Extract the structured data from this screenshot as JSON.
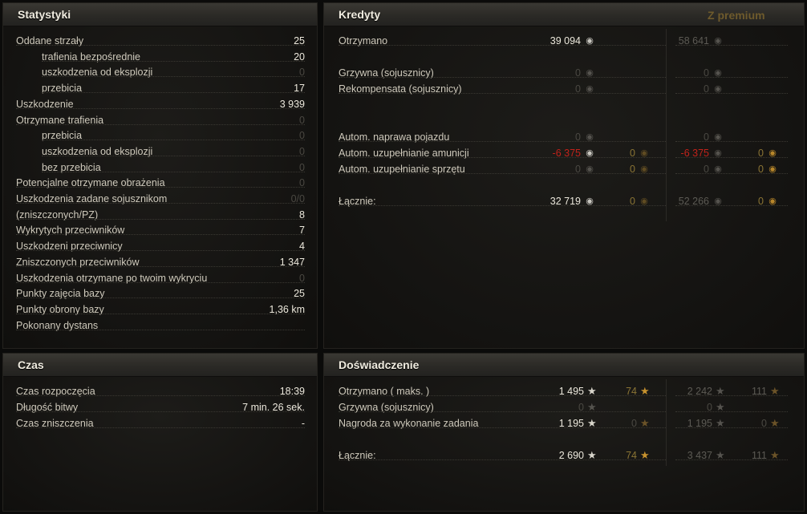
{
  "stats": {
    "title": "Statystyki",
    "rows": [
      {
        "label": "Oddane strzały",
        "value": "25",
        "indent": false,
        "dim": false
      },
      {
        "label": "trafienia bezpośrednie",
        "value": "20",
        "indent": true,
        "dim": false
      },
      {
        "label": "uszkodzenia od eksplozji",
        "value": "0",
        "indent": true,
        "dim": true
      },
      {
        "label": "przebicia",
        "value": "17",
        "indent": true,
        "dim": false
      },
      {
        "label": "Uszkodzenie",
        "value": "3 939",
        "indent": false,
        "dim": false
      },
      {
        "label": "Otrzymane trafienia",
        "value": "0",
        "indent": false,
        "dim": true
      },
      {
        "label": "przebicia",
        "value": "0",
        "indent": true,
        "dim": true
      },
      {
        "label": "uszkodzenia od eksplozji",
        "value": "0",
        "indent": true,
        "dim": true
      },
      {
        "label": "bez przebicia",
        "value": "0",
        "indent": true,
        "dim": true
      },
      {
        "label": "Potencjalne otrzymane obrażenia",
        "value": "0",
        "indent": false,
        "dim": true
      },
      {
        "label": "Uszkodzenia zadane sojusznikom",
        "value": "0/0",
        "indent": false,
        "dim": true
      },
      {
        "label": "(zniszczonych/PZ)",
        "value": "8",
        "indent": false,
        "dim": false
      },
      {
        "label": "Wykrytych przeciwników",
        "value": "7",
        "indent": false,
        "dim": false
      },
      {
        "label": "Uszkodzeni przeciwnicy",
        "value": "4",
        "indent": false,
        "dim": false
      },
      {
        "label": "Zniszczonych przeciwników",
        "value": "1 347",
        "indent": false,
        "dim": false
      },
      {
        "label": "Uszkodzenia otrzymane po twoim wykryciu",
        "value": "0",
        "indent": false,
        "dim": true
      },
      {
        "label": "Punkty zajęcia bazy",
        "value": "25",
        "indent": false,
        "dim": false
      },
      {
        "label": "Punkty obrony bazy",
        "value": "1,36 km",
        "indent": false,
        "dim": false
      },
      {
        "label": "Pokonany dystans",
        "value": "",
        "indent": false,
        "dim": false
      }
    ]
  },
  "credits": {
    "title": "Kredyty",
    "premium_label": "Z premium",
    "rows": [
      {
        "label": "Otrzymano",
        "v1": "39 094",
        "v1c": "",
        "g1": null,
        "p1": "58 641",
        "p1c": "gray",
        "pg1": null
      },
      {
        "label": "Grzywna (sojusznicy)",
        "v1": "0",
        "v1c": "dim",
        "g1": null,
        "p1": "0",
        "p1c": "dim",
        "pg1": null
      },
      {
        "label": "Rekompensata (sojusznicy)",
        "v1": "0",
        "v1c": "dim",
        "g1": null,
        "p1": "0",
        "p1c": "dim",
        "pg1": null
      },
      {
        "label": "Autom. naprawa pojazdu",
        "v1": "0",
        "v1c": "dim",
        "g1": null,
        "p1": "0",
        "p1c": "dim",
        "pg1": null
      },
      {
        "label": "Autom. uzupełnianie amunicji",
        "v1": "-6 375",
        "v1c": "red",
        "g1": "0",
        "p1": "-6 375",
        "p1c": "red",
        "pg1": "0"
      },
      {
        "label": "Autom. uzupełnianie sprzętu",
        "v1": "0",
        "v1c": "dim",
        "g1": "0",
        "p1": "0",
        "p1c": "dim",
        "pg1": "0"
      },
      {
        "label": "Łącznie:",
        "v1": "32 719",
        "v1c": "",
        "g1": "0",
        "p1": "52 266",
        "p1c": "gray",
        "pg1": "0"
      }
    ]
  },
  "time": {
    "title": "Czas",
    "rows": [
      {
        "label": "Czas rozpoczęcia",
        "value": "18:39"
      },
      {
        "label": "Długość bitwy",
        "value": "7 min. 26 sek."
      },
      {
        "label": "Czas zniszczenia",
        "value": "-"
      }
    ]
  },
  "experience": {
    "title": "Doświadczenie",
    "rows": [
      {
        "label": "Otrzymano ( maks. )",
        "v1": "1 495",
        "g1": "74",
        "p1": "2 242",
        "pg1": "111"
      },
      {
        "label": "Grzywna (sojusznicy)",
        "v1": "0",
        "g1": "",
        "p1": "0",
        "pg1": ""
      },
      {
        "label": "Nagroda za wykonanie zadania",
        "v1": "1 195",
        "g1": "0",
        "p1": "1 195",
        "pg1": "0"
      },
      {
        "label": "Łącznie:",
        "v1": "2 690",
        "g1": "74",
        "p1": "3 437",
        "pg1": "111"
      }
    ]
  },
  "icons": {
    "credit": "credit-coin-icon",
    "gold": "gold-coin-icon",
    "xp": "star-icon",
    "free_xp": "gold-star-icon"
  }
}
